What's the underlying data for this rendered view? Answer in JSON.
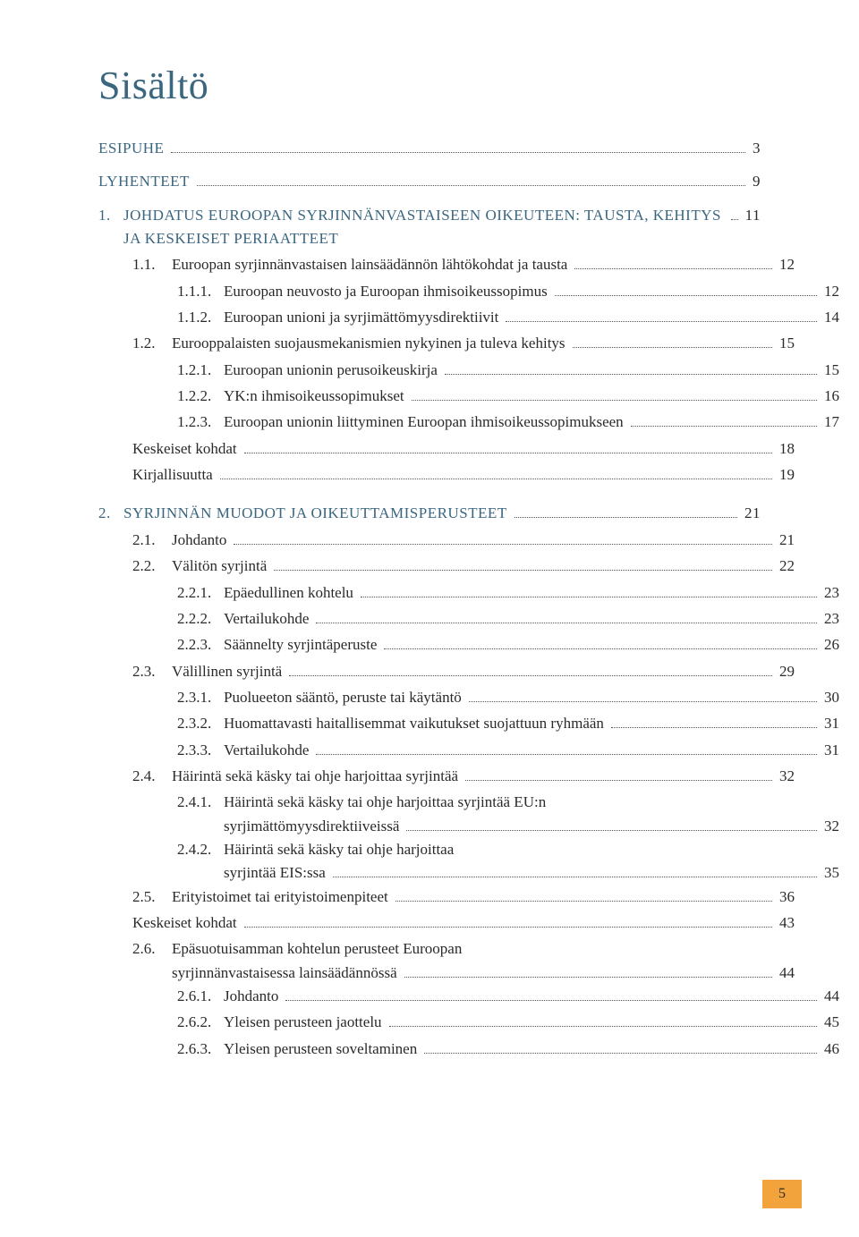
{
  "title": "Sisältö",
  "page_number": "5",
  "colors": {
    "heading": "#3a6680",
    "text": "#2a2a2a",
    "page_badge_bg": "#f3a33b",
    "background": "#ffffff"
  },
  "entries": [
    {
      "level": 0,
      "num": "",
      "label": "ESIPUHE",
      "page": "3"
    },
    {
      "level": 0,
      "num": "",
      "label": "LYHENTEET",
      "page": "9",
      "spacer_before": "sm"
    },
    {
      "level": 1,
      "num": "1.",
      "label": "JOHDATUS EUROOPAN SYRJINNÄNVASTAISEEN OIKEUTEEN: TAUSTA, KEHITYS JA KESKEISET PERIAATTEET",
      "page": "11",
      "spacer_before": "sm"
    },
    {
      "level": 2,
      "num": "1.1.",
      "label": "Euroopan syrjinnänvastaisen lainsäädännön lähtökohdat ja tausta",
      "page": "12"
    },
    {
      "level": 3,
      "num": "1.1.1.",
      "label": "Euroopan neuvosto ja Euroopan ihmisoikeussopimus",
      "page": "12"
    },
    {
      "level": 3,
      "num": "1.1.2.",
      "label": "Euroopan unioni ja syrjimättömyysdirektiivit",
      "page": "14"
    },
    {
      "level": 2,
      "num": "1.2.",
      "label": "Eurooppalaisten suojausmekanismien nykyinen ja tuleva kehitys",
      "page": "15"
    },
    {
      "level": 3,
      "num": "1.2.1.",
      "label": "Euroopan unionin perusoikeuskirja",
      "page": "15"
    },
    {
      "level": 3,
      "num": "1.2.2.",
      "label": "YK:n ihmisoikeussopimukset",
      "page": "16"
    },
    {
      "level": 3,
      "num": "1.2.3.",
      "label": "Euroopan unionin liittyminen Euroopan ihmisoikeussopimukseen",
      "page": "17"
    },
    {
      "level": 2,
      "num": "",
      "label": "Keskeiset kohdat",
      "page": "18"
    },
    {
      "level": 2,
      "num": "",
      "label": "Kirjallisuutta",
      "page": "19"
    },
    {
      "level": 1,
      "num": "2.",
      "label": "SYRJINNÄN MUODOT JA OIKEUTTAMISPERUSTEET",
      "page": "21",
      "spacer_before": "md"
    },
    {
      "level": 2,
      "num": "2.1.",
      "label": "Johdanto",
      "page": "21"
    },
    {
      "level": 2,
      "num": "2.2.",
      "label": "Välitön syrjintä",
      "page": "22"
    },
    {
      "level": 3,
      "num": "2.2.1.",
      "label": "Epäedullinen kohtelu",
      "page": "23"
    },
    {
      "level": 3,
      "num": "2.2.2.",
      "label": "Vertailukohde",
      "page": "23"
    },
    {
      "level": 3,
      "num": "2.2.3.",
      "label": "Säännelty syrjintäperuste",
      "page": "26"
    },
    {
      "level": 2,
      "num": "2.3.",
      "label": "Välillinen syrjintä",
      "page": "29"
    },
    {
      "level": 3,
      "num": "2.3.1.",
      "label": "Puolueeton sääntö, peruste tai käytäntö",
      "page": "30"
    },
    {
      "level": 3,
      "num": "2.3.2.",
      "label": "Huomattavasti haitallisemmat vaikutukset suojattuun ryhmään",
      "page": "31"
    },
    {
      "level": 3,
      "num": "2.3.3.",
      "label": "Vertailukohde",
      "page": "31"
    },
    {
      "level": 2,
      "num": "2.4.",
      "label": "Häirintä sekä käsky tai ohje harjoittaa syrjintää",
      "page": "32"
    },
    {
      "level": 3,
      "num": "2.4.1.",
      "label_line1": "Häirintä sekä käsky tai ohje harjoittaa syrjintää EU:n",
      "label_line2": "syrjimättömyysdirektiiveissä",
      "page": "32",
      "multiline": true
    },
    {
      "level": 3,
      "num": "2.4.2.",
      "label_line1": "Häirintä sekä käsky tai ohje harjoittaa",
      "label_line2": "syrjintää EIS:ssa",
      "page": "35",
      "multiline": true
    },
    {
      "level": 2,
      "num": "2.5.",
      "label": "Erityistoimet tai erityistoimenpiteet",
      "page": "36"
    },
    {
      "level": 2,
      "num": "",
      "label": "Keskeiset kohdat",
      "page": "43"
    },
    {
      "level": 2,
      "num": "2.6.",
      "label_line1": "Epäsuotuisamman kohtelun perusteet Euroopan",
      "label_line2": "syrjinnänvastaisessa lainsäädännössä",
      "page": "44",
      "multiline": true
    },
    {
      "level": 3,
      "num": "2.6.1.",
      "label": "Johdanto",
      "page": "44"
    },
    {
      "level": 3,
      "num": "2.6.2.",
      "label": "Yleisen perusteen jaottelu",
      "page": "45"
    },
    {
      "level": 3,
      "num": "2.6.3.",
      "label": "Yleisen perusteen soveltaminen",
      "page": "46"
    }
  ]
}
